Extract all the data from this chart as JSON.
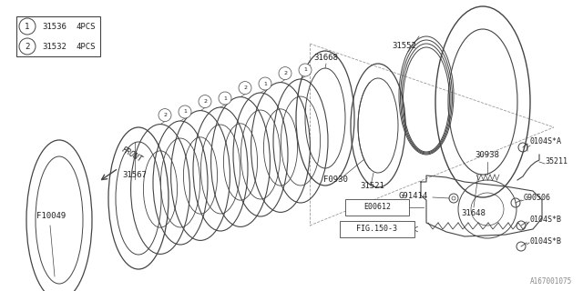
{
  "bg_color": "#ffffff",
  "line_color": "#444444",
  "text_color": "#222222",
  "fig_width": 6.4,
  "fig_height": 3.2,
  "dpi": 100,
  "watermark": "A167001075",
  "legend": [
    {
      "symbol": "1",
      "part": "31536",
      "qty": "4PCS"
    },
    {
      "symbol": "2",
      "part": "31532",
      "qty": "4PCS"
    }
  ]
}
